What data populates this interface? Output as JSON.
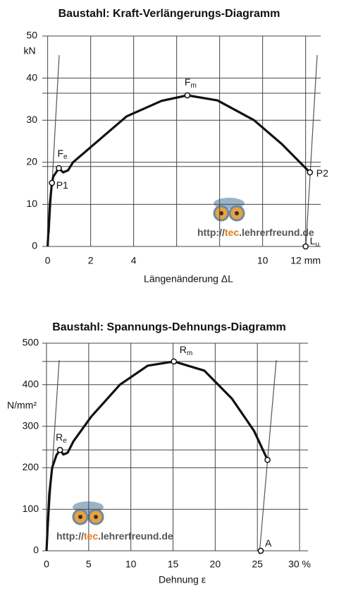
{
  "chart_data": [
    {
      "type": "line",
      "title": "Baustahl: Kraft-Verlängerungs-Diagramm",
      "x_label": "Längenänderung ΔL",
      "y_label": "kN",
      "xlim": [
        -0.25,
        12.7
      ],
      "ylim": [
        0,
        50
      ],
      "xticks": [
        0,
        2,
        4,
        10,
        {
          "value": 12,
          "label": "12 mm"
        }
      ],
      "xgrid": [
        0,
        2,
        4,
        6,
        8,
        10,
        12
      ],
      "yticks": [
        0,
        10,
        20,
        30,
        40,
        50
      ],
      "hlines": [
        36.4,
        19
      ],
      "color": "#111111",
      "x": [
        0,
        0.1,
        0.2,
        0.26,
        0.52,
        0.72,
        0.95,
        1.18,
        2.03,
        3.67,
        5.3,
        6.5,
        7.9,
        9.6,
        10.9,
        12.2
      ],
      "values": [
        0,
        10,
        15.1,
        16.6,
        18.6,
        17.6,
        18.1,
        20,
        23.7,
        30.9,
        34.6,
        35.9,
        34.7,
        30,
        24.3,
        17.6
      ],
      "markers": [
        {
          "label": "F",
          "sub": "e",
          "x": 0.52,
          "y": 18.6
        },
        {
          "label": "P1",
          "x": 0.2,
          "y": 15.1
        },
        {
          "label": "F",
          "sub": "m",
          "x": 6.5,
          "y": 35.9
        },
        {
          "label": "P2",
          "x": 12.2,
          "y": 17.6
        },
        {
          "label": "L",
          "sub": "u",
          "x": 12.0,
          "y": 0
        }
      ],
      "watermark": [
        "http://",
        "tec",
        ".lehrerfreund.de"
      ]
    },
    {
      "type": "line",
      "title": "Baustahl: Spannungs-Dehnungs-Diagramm",
      "x_label": "Dehnung ε",
      "y_label": "N/mm²",
      "xlim": [
        -0.5,
        31
      ],
      "ylim": [
        0,
        500
      ],
      "xticks": [
        0,
        5,
        10,
        15,
        20,
        25,
        {
          "value": 30,
          "label": "30 %"
        }
      ],
      "xgrid": [
        0,
        5,
        10,
        15,
        20,
        25,
        30
      ],
      "yticks": [
        0,
        100,
        200,
        300,
        400,
        500
      ],
      "hlines": [
        456,
        243
      ],
      "color": "#111111",
      "x": [
        0,
        0.33,
        0.67,
        1.17,
        1.6,
        2,
        2.5,
        3.2,
        5.3,
        8.7,
        12,
        15.1,
        18.7,
        22,
        24.6,
        26.2
      ],
      "values": [
        0,
        136,
        200,
        230,
        243,
        232,
        236,
        264,
        323,
        400,
        446,
        456,
        434,
        366,
        289,
        219
      ],
      "markers": [
        {
          "label": "R",
          "sub": "e",
          "x": 1.6,
          "y": 243
        },
        {
          "label": "R",
          "sub": "m",
          "x": 15.1,
          "y": 456
        },
        {
          "x": 26.2,
          "y": 219
        },
        {
          "label": "A",
          "x": 25.4,
          "y": 0
        }
      ],
      "watermark": [
        "http://",
        "tec",
        ".lehrerfreund.de"
      ]
    }
  ]
}
